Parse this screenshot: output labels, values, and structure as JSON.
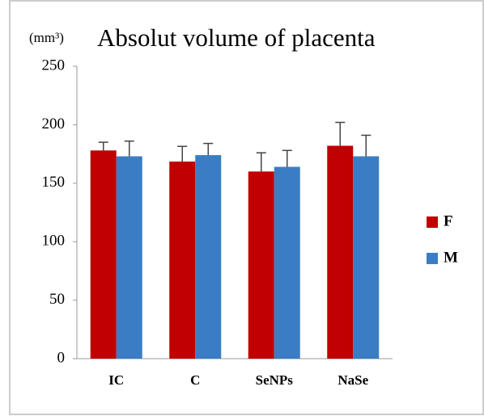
{
  "chart_data": {
    "type": "bar",
    "title": "Absolut volume of placenta",
    "y_label": "(mm³)",
    "categories": [
      "IC",
      "C",
      "SeNPs",
      "NaSe"
    ],
    "series": [
      {
        "name": "F",
        "color": "#c00000",
        "values": [
          178,
          168.5,
          160,
          182
        ],
        "errors": [
          7,
          13,
          16,
          20
        ]
      },
      {
        "name": "M",
        "color": "#3a7dc4",
        "values": [
          173,
          174,
          164,
          173
        ],
        "errors": [
          13,
          10,
          14,
          18
        ]
      }
    ],
    "ylim": [
      0,
      250
    ],
    "yticks": [
      0,
      50,
      100,
      150,
      200,
      250
    ],
    "grid": false,
    "legend": "right"
  }
}
